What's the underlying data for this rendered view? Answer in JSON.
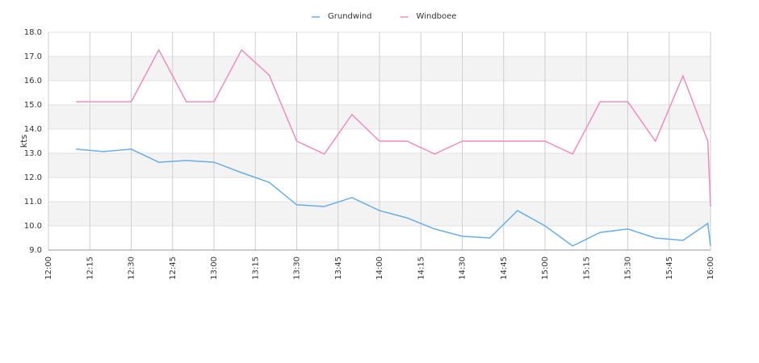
{
  "chart_data": {
    "type": "line",
    "y_label": "kts",
    "x": [
      "12:10",
      "12:20",
      "12:30",
      "12:40",
      "12:50",
      "13:00",
      "13:10",
      "13:20",
      "13:30",
      "13:40",
      "13:50",
      "14:00",
      "14:10",
      "14:20",
      "14:30",
      "14:40",
      "14:50",
      "15:00",
      "15:10",
      "15:20",
      "15:30",
      "15:40",
      "15:50",
      "15:59",
      "16:00"
    ],
    "series": [
      {
        "name": "Grundwind",
        "color": "#6aaee8",
        "values": [
          13.17,
          13.07,
          13.17,
          12.63,
          12.7,
          12.63,
          12.2,
          11.8,
          10.87,
          10.8,
          11.17,
          10.63,
          10.33,
          9.87,
          9.57,
          9.5,
          10.63,
          10.0,
          9.17,
          9.73,
          9.87,
          9.5,
          9.4,
          10.1,
          9.17
        ]
      },
      {
        "name": "Windboee",
        "color": "#f08cc0",
        "values": [
          15.13,
          15.13,
          15.13,
          17.27,
          15.13,
          15.13,
          17.27,
          16.23,
          13.5,
          12.97,
          14.6,
          13.5,
          13.5,
          12.97,
          13.5,
          13.5,
          13.5,
          13.5,
          12.97,
          15.13,
          15.13,
          13.5,
          16.2,
          13.5,
          10.8
        ]
      }
    ],
    "xlim": [
      "12:00",
      "16:00"
    ],
    "xticks": [
      "12:00",
      "12:15",
      "12:30",
      "12:45",
      "13:00",
      "13:15",
      "13:30",
      "13:45",
      "14:00",
      "14:15",
      "14:30",
      "14:45",
      "15:00",
      "15:15",
      "15:30",
      "15:45",
      "16:00"
    ],
    "ylim": [
      9,
      18
    ],
    "yticks": [
      {
        "value": 9,
        "label": "9.0"
      },
      {
        "value": 10,
        "label": "10.0"
      },
      {
        "value": 11,
        "label": "11.0"
      },
      {
        "value": 12,
        "label": "12.0"
      },
      {
        "value": 13,
        "label": "13.0"
      },
      {
        "value": 14,
        "label": "14.0"
      },
      {
        "value": 15,
        "label": "15.0"
      },
      {
        "value": 16,
        "label": "16.0"
      },
      {
        "value": 17,
        "label": "17.0"
      },
      {
        "value": 18,
        "label": "18.0"
      }
    ],
    "grid": true,
    "legend": "top"
  }
}
